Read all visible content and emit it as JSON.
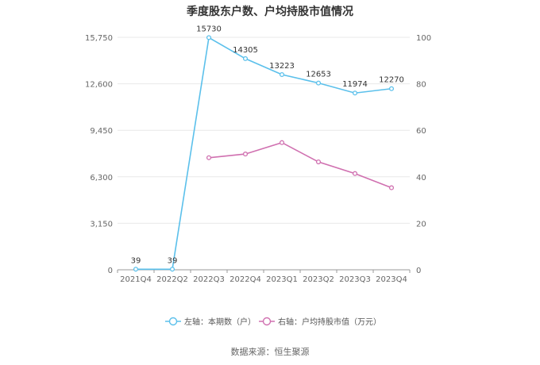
{
  "chart_data": {
    "type": "line",
    "title": "季度股东户数、户均持股市值情况",
    "categories": [
      "2021Q4",
      "2022Q2",
      "2022Q3",
      "2022Q4",
      "2023Q1",
      "2023Q2",
      "2023Q3",
      "2023Q4"
    ],
    "y_left": {
      "ticks": [
        "0",
        "3,150",
        "6,300",
        "9,450",
        "12,600",
        "15,750"
      ],
      "range": [
        0,
        15750
      ]
    },
    "y_right": {
      "ticks": [
        "0",
        "20",
        "40",
        "60",
        "80",
        "100"
      ],
      "range": [
        0,
        100
      ]
    },
    "grid": true,
    "legend_position": "bottom",
    "series": [
      {
        "name": "左轴：本期数（户）",
        "axis": "left",
        "color": "#5bc0eb",
        "values": [
          39,
          39,
          15730,
          14305,
          13223,
          12653,
          11974,
          12270
        ],
        "labels": [
          "39",
          "39",
          "15730",
          "14305",
          "13223",
          "12653",
          "11974",
          "12270"
        ]
      },
      {
        "name": "右轴：户均持股市值（万元）",
        "axis": "right",
        "color": "#d070b0",
        "values": [
          null,
          null,
          48.2,
          49.8,
          54.7,
          46.4,
          41.4,
          35.3
        ]
      }
    ],
    "source": "数据来源：恒生聚源"
  }
}
